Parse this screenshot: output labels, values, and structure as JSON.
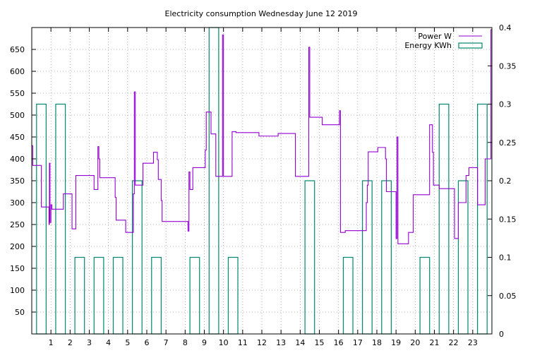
{
  "chart_data": {
    "type": "line",
    "title": "Electricity consumption Wednesday June 12 2019",
    "grid": true,
    "legend_position": "top-right",
    "x_ticks": [
      1,
      2,
      3,
      4,
      5,
      6,
      7,
      8,
      9,
      10,
      11,
      12,
      13,
      14,
      15,
      16,
      17,
      18,
      19,
      20,
      21,
      22,
      23
    ],
    "xlim": [
      0,
      24
    ],
    "y_left": {
      "lim": [
        0,
        700
      ],
      "ticks": [
        50,
        100,
        150,
        200,
        250,
        300,
        350,
        400,
        450,
        500,
        550,
        600,
        650
      ]
    },
    "y_right": {
      "lim": [
        0,
        0.4
      ],
      "ticks": [
        0,
        0.05,
        0.1,
        0.15,
        0.2,
        0.25,
        0.3,
        0.35,
        0.4
      ]
    },
    "series": [
      {
        "name": "Power W",
        "axis": "left",
        "color": "#9400d3",
        "style": "step",
        "points": [
          [
            0,
            430
          ],
          [
            0.05,
            385
          ],
          [
            0.45,
            385
          ],
          [
            0.5,
            290
          ],
          [
            0.85,
            290
          ],
          [
            0.9,
            250
          ],
          [
            0.92,
            390
          ],
          [
            0.95,
            255
          ],
          [
            1.0,
            295
          ],
          [
            1.05,
            285
          ],
          [
            1.6,
            285
          ],
          [
            1.65,
            320
          ],
          [
            2.0,
            320
          ],
          [
            2.1,
            240
          ],
          [
            2.3,
            240
          ],
          [
            2.3,
            362
          ],
          [
            3.2,
            362
          ],
          [
            3.25,
            330
          ],
          [
            3.4,
            330
          ],
          [
            3.45,
            428
          ],
          [
            3.5,
            400
          ],
          [
            3.55,
            357
          ],
          [
            4.3,
            357
          ],
          [
            4.35,
            312
          ],
          [
            4.4,
            260
          ],
          [
            4.85,
            260
          ],
          [
            4.9,
            232
          ],
          [
            5.25,
            232
          ],
          [
            5.3,
            320
          ],
          [
            5.35,
            553
          ],
          [
            5.4,
            340
          ],
          [
            5.75,
            340
          ],
          [
            5.8,
            390
          ],
          [
            6.3,
            390
          ],
          [
            6.35,
            415
          ],
          [
            6.5,
            415
          ],
          [
            6.55,
            398
          ],
          [
            6.6,
            353
          ],
          [
            6.7,
            353
          ],
          [
            6.75,
            305
          ],
          [
            6.8,
            257
          ],
          [
            8.1,
            257
          ],
          [
            8.15,
            235
          ],
          [
            8.2,
            370
          ],
          [
            8.25,
            330
          ],
          [
            8.35,
            330
          ],
          [
            8.4,
            380
          ],
          [
            9.0,
            380
          ],
          [
            9.05,
            420
          ],
          [
            9.1,
            507
          ],
          [
            9.3,
            507
          ],
          [
            9.35,
            457
          ],
          [
            9.55,
            457
          ],
          [
            9.6,
            360
          ],
          [
            9.9,
            360
          ],
          [
            9.95,
            683
          ],
          [
            10.0,
            360
          ],
          [
            10.4,
            360
          ],
          [
            10.45,
            462
          ],
          [
            10.6,
            462
          ],
          [
            10.65,
            460
          ],
          [
            11.8,
            460
          ],
          [
            11.85,
            452
          ],
          [
            12.8,
            452
          ],
          [
            12.85,
            458
          ],
          [
            13.7,
            458
          ],
          [
            13.75,
            360
          ],
          [
            14.4,
            360
          ],
          [
            14.45,
            655
          ],
          [
            14.5,
            495
          ],
          [
            15.1,
            495
          ],
          [
            15.15,
            478
          ],
          [
            16.0,
            478
          ],
          [
            16.05,
            510
          ],
          [
            16.1,
            232
          ],
          [
            16.3,
            232
          ],
          [
            16.35,
            236
          ],
          [
            17.4,
            236
          ],
          [
            17.45,
            300
          ],
          [
            17.5,
            340
          ],
          [
            17.55,
            416
          ],
          [
            18.0,
            416
          ],
          [
            18.05,
            426
          ],
          [
            18.4,
            426
          ],
          [
            18.45,
            400
          ],
          [
            18.5,
            325
          ],
          [
            18.95,
            325
          ],
          [
            19.0,
            218
          ],
          [
            19.05,
            450
          ],
          [
            19.1,
            206
          ],
          [
            19.6,
            206
          ],
          [
            19.65,
            232
          ],
          [
            19.85,
            232
          ],
          [
            19.9,
            318
          ],
          [
            20.7,
            318
          ],
          [
            20.75,
            478
          ],
          [
            20.85,
            478
          ],
          [
            20.9,
            415
          ],
          [
            20.95,
            340
          ],
          [
            21.2,
            340
          ],
          [
            21.25,
            332
          ],
          [
            22.0,
            332
          ],
          [
            22.05,
            218
          ],
          [
            22.2,
            218
          ],
          [
            22.25,
            300
          ],
          [
            22.6,
            300
          ],
          [
            22.65,
            362
          ],
          [
            22.75,
            362
          ],
          [
            22.8,
            380
          ],
          [
            23.2,
            380
          ],
          [
            23.25,
            295
          ],
          [
            23.6,
            295
          ],
          [
            23.65,
            400
          ],
          [
            23.9,
            400
          ],
          [
            23.95,
            695
          ],
          [
            24,
            695
          ]
        ]
      },
      {
        "name": "Energy KWh",
        "axis": "right",
        "color": "#00876f",
        "style": "bars",
        "bar_width": 0.5,
        "hours": [
          0,
          1,
          2,
          3,
          4,
          5,
          6,
          7,
          8,
          9,
          10,
          11,
          12,
          13,
          14,
          15,
          16,
          17,
          18,
          19,
          20,
          21,
          22,
          23
        ],
        "values": [
          0.3,
          0.3,
          0.1,
          0.1,
          0.1,
          0.2,
          0.1,
          0,
          0.1,
          0.4,
          0.1,
          0,
          0,
          0,
          0.2,
          0,
          0.1,
          0.2,
          0.2,
          0,
          0.1,
          0.3,
          0.2,
          0.3
        ]
      }
    ]
  }
}
